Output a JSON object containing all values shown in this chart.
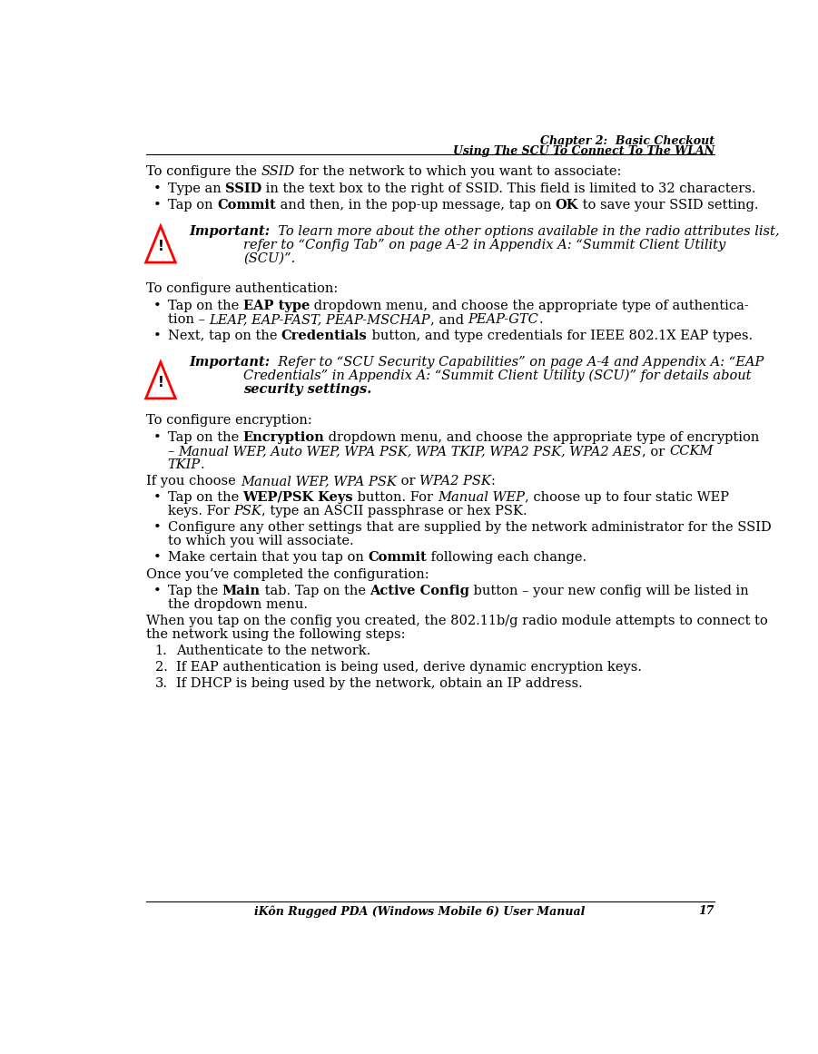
{
  "bg_color": "#ffffff",
  "text_color": "#000000",
  "header_line1": "Chapter 2:  Basic Checkout",
  "header_line2": "Using The SCU To Connect To The WLAN",
  "footer_center": "iKôn Rugged PDA (Windows Mobile 6) User Manual",
  "footer_page": "17",
  "font_size_body": 10.5,
  "font_size_header": 9.0,
  "font_size_footer": 9.0,
  "font_family": "DejaVu Serif"
}
